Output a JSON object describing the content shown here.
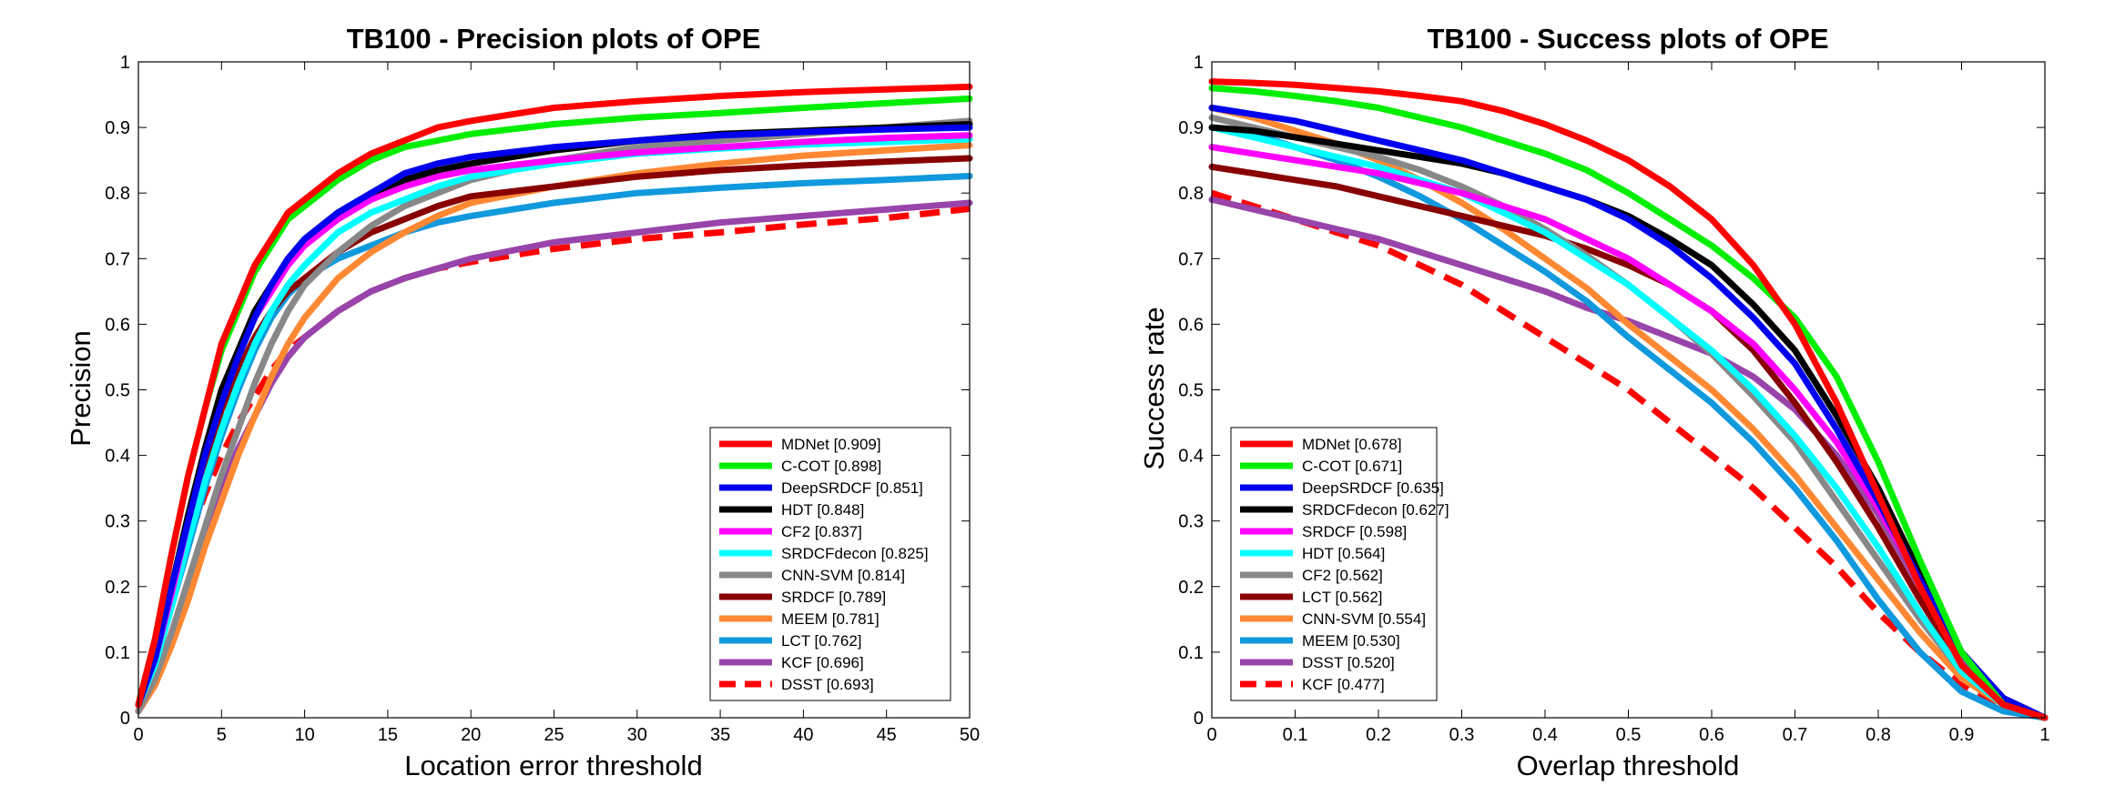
{
  "chart_data": [
    {
      "type": "line",
      "title": "TB100 - Precision plots of OPE",
      "xlabel": "Location error threshold",
      "ylabel": "Precision",
      "xlim": [
        0,
        50
      ],
      "ylim": [
        0,
        1
      ],
      "x_ticks": [
        "0",
        "5",
        "10",
        "15",
        "20",
        "25",
        "30",
        "35",
        "40",
        "45",
        "50"
      ],
      "y_ticks": [
        "0",
        "0.1",
        "0.2",
        "0.3",
        "0.4",
        "0.5",
        "0.6",
        "0.7",
        "0.8",
        "0.9",
        "1"
      ],
      "grid": false,
      "legend_position": "lower-right",
      "x": [
        0,
        1,
        2,
        3,
        4,
        5,
        6,
        7,
        8,
        9,
        10,
        12,
        14,
        16,
        18,
        20,
        25,
        30,
        35,
        40,
        45,
        50
      ],
      "series": [
        {
          "name": "MDNet [0.909]",
          "color": "#ff0000",
          "dashed": false,
          "values": [
            0.02,
            0.12,
            0.25,
            0.37,
            0.47,
            0.57,
            0.63,
            0.69,
            0.73,
            0.77,
            0.79,
            0.83,
            0.86,
            0.88,
            0.9,
            0.91,
            0.93,
            0.94,
            0.948,
            0.954,
            0.958,
            0.962
          ]
        },
        {
          "name": "C-COT [0.898]",
          "color": "#00ee00",
          "dashed": false,
          "values": [
            0.02,
            0.12,
            0.25,
            0.37,
            0.47,
            0.56,
            0.62,
            0.68,
            0.72,
            0.76,
            0.78,
            0.82,
            0.85,
            0.87,
            0.88,
            0.89,
            0.905,
            0.915,
            0.922,
            0.93,
            0.937,
            0.944
          ]
        },
        {
          "name": "DeepSRDCF [0.851]",
          "color": "#0000ee",
          "dashed": false,
          "values": [
            0.02,
            0.09,
            0.2,
            0.3,
            0.4,
            0.48,
            0.55,
            0.61,
            0.66,
            0.7,
            0.73,
            0.77,
            0.8,
            0.83,
            0.845,
            0.855,
            0.87,
            0.88,
            0.888,
            0.893,
            0.897,
            0.9
          ]
        },
        {
          "name": "HDT [0.848]",
          "color": "#000000",
          "dashed": false,
          "values": [
            0.02,
            0.1,
            0.2,
            0.31,
            0.41,
            0.5,
            0.56,
            0.62,
            0.66,
            0.7,
            0.73,
            0.77,
            0.8,
            0.82,
            0.835,
            0.845,
            0.865,
            0.88,
            0.89,
            0.895,
            0.9,
            0.905
          ]
        },
        {
          "name": "CF2 [0.837]",
          "color": "#ff00ff",
          "dashed": false,
          "values": [
            0.02,
            0.09,
            0.19,
            0.3,
            0.4,
            0.49,
            0.55,
            0.61,
            0.65,
            0.69,
            0.72,
            0.76,
            0.79,
            0.81,
            0.825,
            0.835,
            0.85,
            0.862,
            0.87,
            0.878,
            0.884,
            0.888
          ]
        },
        {
          "name": "SRDCFdecon [0.825]",
          "color": "#00ffff",
          "dashed": false,
          "values": [
            0.02,
            0.08,
            0.17,
            0.27,
            0.36,
            0.44,
            0.51,
            0.57,
            0.62,
            0.66,
            0.69,
            0.74,
            0.77,
            0.79,
            0.81,
            0.825,
            0.845,
            0.86,
            0.868,
            0.874,
            0.878,
            0.882
          ]
        },
        {
          "name": "CNN-SVM [0.814]",
          "color": "#888888",
          "dashed": false,
          "values": [
            0.01,
            0.06,
            0.13,
            0.21,
            0.29,
            0.37,
            0.44,
            0.51,
            0.57,
            0.62,
            0.66,
            0.71,
            0.75,
            0.78,
            0.8,
            0.82,
            0.85,
            0.87,
            0.88,
            0.89,
            0.9,
            0.91
          ]
        },
        {
          "name": "SRDCF [0.789]",
          "color": "#880000",
          "dashed": false,
          "values": [
            0.02,
            0.09,
            0.19,
            0.29,
            0.38,
            0.47,
            0.53,
            0.58,
            0.62,
            0.65,
            0.67,
            0.71,
            0.74,
            0.76,
            0.78,
            0.795,
            0.81,
            0.825,
            0.835,
            0.842,
            0.848,
            0.853
          ]
        },
        {
          "name": "MEEM [0.781]",
          "color": "#ff8833",
          "dashed": false,
          "values": [
            0.01,
            0.05,
            0.11,
            0.18,
            0.26,
            0.33,
            0.4,
            0.46,
            0.52,
            0.57,
            0.61,
            0.67,
            0.71,
            0.74,
            0.765,
            0.785,
            0.81,
            0.83,
            0.845,
            0.857,
            0.865,
            0.873
          ]
        },
        {
          "name": "LCT [0.762]",
          "color": "#1199dd",
          "dashed": false,
          "values": [
            0.02,
            0.08,
            0.17,
            0.26,
            0.35,
            0.43,
            0.5,
            0.56,
            0.61,
            0.645,
            0.67,
            0.7,
            0.72,
            0.74,
            0.755,
            0.765,
            0.785,
            0.8,
            0.808,
            0.815,
            0.82,
            0.826
          ]
        },
        {
          "name": "KCF [0.696]",
          "color": "#9944aa",
          "dashed": false,
          "values": [
            0.01,
            0.05,
            0.12,
            0.2,
            0.28,
            0.35,
            0.41,
            0.46,
            0.51,
            0.55,
            0.58,
            0.62,
            0.65,
            0.67,
            0.685,
            0.7,
            0.725,
            0.74,
            0.755,
            0.765,
            0.775,
            0.785
          ]
        },
        {
          "name": "DSST [0.693]",
          "color": "#ff0000",
          "dashed": true,
          "values": [
            0.01,
            0.08,
            0.18,
            0.27,
            0.34,
            0.4,
            0.45,
            0.49,
            0.53,
            0.56,
            0.58,
            0.62,
            0.65,
            0.67,
            0.685,
            0.695,
            0.715,
            0.73,
            0.74,
            0.752,
            0.762,
            0.776
          ]
        }
      ]
    },
    {
      "type": "line",
      "title": "TB100 - Success plots of OPE",
      "xlabel": "Overlap threshold",
      "ylabel": "Success rate",
      "xlim": [
        0,
        1
      ],
      "ylim": [
        0,
        1
      ],
      "x_ticks": [
        "0",
        "0.1",
        "0.2",
        "0.3",
        "0.4",
        "0.5",
        "0.6",
        "0.7",
        "0.8",
        "0.9",
        "1"
      ],
      "y_ticks": [
        "0",
        "0.1",
        "0.2",
        "0.3",
        "0.4",
        "0.5",
        "0.6",
        "0.7",
        "0.8",
        "0.9",
        "1"
      ],
      "grid": false,
      "legend_position": "lower-left",
      "x": [
        0,
        0.05,
        0.1,
        0.15,
        0.2,
        0.25,
        0.3,
        0.35,
        0.4,
        0.45,
        0.5,
        0.55,
        0.6,
        0.65,
        0.7,
        0.75,
        0.8,
        0.85,
        0.9,
        0.95,
        1.0
      ],
      "series": [
        {
          "name": "MDNet [0.678]",
          "color": "#ff0000",
          "dashed": false,
          "values": [
            0.97,
            0.968,
            0.965,
            0.96,
            0.955,
            0.948,
            0.94,
            0.925,
            0.905,
            0.88,
            0.85,
            0.81,
            0.76,
            0.69,
            0.6,
            0.48,
            0.34,
            0.2,
            0.08,
            0.02,
            0.0
          ]
        },
        {
          "name": "C-COT [0.671]",
          "color": "#00ee00",
          "dashed": false,
          "values": [
            0.96,
            0.955,
            0.948,
            0.94,
            0.93,
            0.915,
            0.9,
            0.88,
            0.86,
            0.835,
            0.8,
            0.76,
            0.72,
            0.67,
            0.61,
            0.52,
            0.39,
            0.24,
            0.1,
            0.02,
            0.0
          ]
        },
        {
          "name": "DeepSRDCF [0.635]",
          "color": "#0000ee",
          "dashed": false,
          "values": [
            0.93,
            0.92,
            0.91,
            0.895,
            0.88,
            0.865,
            0.85,
            0.83,
            0.81,
            0.79,
            0.76,
            0.72,
            0.67,
            0.61,
            0.54,
            0.44,
            0.33,
            0.21,
            0.1,
            0.03,
            0.0
          ]
        },
        {
          "name": "SRDCFdecon [0.627]",
          "color": "#000000",
          "dashed": false,
          "values": [
            0.9,
            0.895,
            0.885,
            0.875,
            0.865,
            0.855,
            0.845,
            0.83,
            0.81,
            0.79,
            0.765,
            0.73,
            0.69,
            0.63,
            0.56,
            0.46,
            0.35,
            0.22,
            0.1,
            0.03,
            0.0
          ]
        },
        {
          "name": "SRDCF [0.598]",
          "color": "#ff00ff",
          "dashed": false,
          "values": [
            0.87,
            0.86,
            0.85,
            0.84,
            0.83,
            0.815,
            0.8,
            0.78,
            0.76,
            0.73,
            0.7,
            0.66,
            0.62,
            0.57,
            0.5,
            0.42,
            0.32,
            0.21,
            0.1,
            0.03,
            0.0
          ]
        },
        {
          "name": "HDT [0.564]",
          "color": "#00ffff",
          "dashed": false,
          "values": [
            0.9,
            0.885,
            0.87,
            0.855,
            0.84,
            0.82,
            0.8,
            0.77,
            0.74,
            0.7,
            0.66,
            0.61,
            0.56,
            0.5,
            0.43,
            0.35,
            0.26,
            0.16,
            0.07,
            0.02,
            0.0
          ]
        },
        {
          "name": "CF2 [0.562]",
          "color": "#888888",
          "dashed": false,
          "values": [
            0.915,
            0.9,
            0.885,
            0.87,
            0.855,
            0.835,
            0.81,
            0.78,
            0.745,
            0.705,
            0.66,
            0.61,
            0.555,
            0.49,
            0.42,
            0.33,
            0.24,
            0.15,
            0.07,
            0.02,
            0.0
          ]
        },
        {
          "name": "LCT [0.562]",
          "color": "#880000",
          "dashed": false,
          "values": [
            0.84,
            0.83,
            0.82,
            0.81,
            0.795,
            0.78,
            0.765,
            0.75,
            0.735,
            0.715,
            0.69,
            0.66,
            0.62,
            0.56,
            0.48,
            0.39,
            0.29,
            0.18,
            0.08,
            0.02,
            0.0
          ]
        },
        {
          "name": "CNN-SVM [0.554]",
          "color": "#ff8833",
          "dashed": false,
          "values": [
            0.93,
            0.915,
            0.895,
            0.875,
            0.85,
            0.82,
            0.785,
            0.745,
            0.7,
            0.655,
            0.6,
            0.55,
            0.5,
            0.44,
            0.37,
            0.29,
            0.21,
            0.13,
            0.06,
            0.02,
            0.0
          ]
        },
        {
          "name": "MEEM [0.530]",
          "color": "#1199dd",
          "dashed": false,
          "values": [
            0.9,
            0.89,
            0.87,
            0.85,
            0.825,
            0.795,
            0.76,
            0.72,
            0.68,
            0.635,
            0.58,
            0.53,
            0.48,
            0.42,
            0.35,
            0.27,
            0.18,
            0.1,
            0.04,
            0.01,
            0.0
          ]
        },
        {
          "name": "DSST [0.520]",
          "color": "#9944aa",
          "dashed": false,
          "values": [
            0.79,
            0.775,
            0.76,
            0.745,
            0.73,
            0.71,
            0.69,
            0.67,
            0.65,
            0.625,
            0.605,
            0.58,
            0.555,
            0.52,
            0.47,
            0.4,
            0.31,
            0.2,
            0.09,
            0.02,
            0.0
          ]
        },
        {
          "name": "KCF [0.477]",
          "color": "#ff0000",
          "dashed": true,
          "values": [
            0.8,
            0.78,
            0.76,
            0.74,
            0.72,
            0.69,
            0.66,
            0.62,
            0.58,
            0.54,
            0.5,
            0.45,
            0.4,
            0.35,
            0.29,
            0.23,
            0.16,
            0.1,
            0.05,
            0.015,
            0.0
          ]
        }
      ]
    }
  ]
}
